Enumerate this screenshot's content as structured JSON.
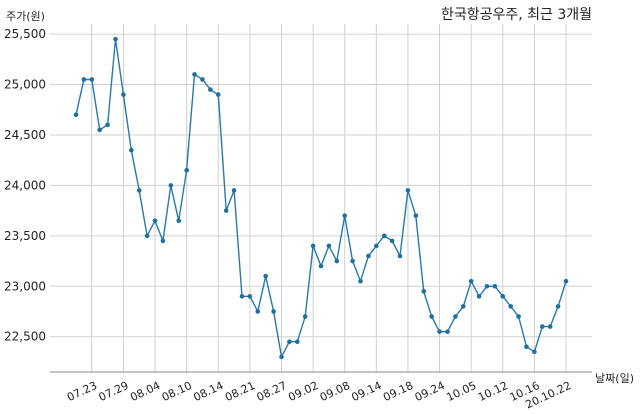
{
  "chart_data": {
    "type": "line",
    "title": "한국항공우주, 최근 3개월",
    "ylabel": "주가(원)",
    "xlabel": "날짜(일)",
    "ylim": [
      22150,
      25600
    ],
    "yticks": [
      22500,
      23000,
      23500,
      24000,
      24500,
      25000,
      25500
    ],
    "ytick_labels": [
      "22,500",
      "23,000",
      "23,500",
      "24,000",
      "24,500",
      "25,000",
      "25,500"
    ],
    "xtick_labels": [
      "07.23",
      "07.29",
      "08.04",
      "08.10",
      "08.14",
      "08.21",
      "08.27",
      "09.02",
      "09.08",
      "09.14",
      "09.18",
      "09.24",
      "10.05",
      "10.12",
      "10.16",
      "20.10.22"
    ],
    "xtick_index": [
      2,
      6,
      10,
      14,
      18,
      22,
      26,
      30,
      34,
      38,
      42,
      46,
      50,
      54,
      58,
      62
    ],
    "grid": true,
    "series": [
      {
        "color": "#2a78a8",
        "values": [
          24700,
          25050,
          25050,
          24550,
          24600,
          25450,
          24900,
          24350,
          23950,
          23500,
          23650,
          23450,
          24000,
          23650,
          24150,
          25100,
          25050,
          24950,
          24900,
          23750,
          23950,
          22900,
          22900,
          22750,
          23100,
          22750,
          22300,
          22450,
          22450,
          22700,
          23400,
          23200,
          23400,
          23250,
          23700,
          23250,
          23050,
          23300,
          23400,
          23500,
          23450,
          23300,
          23950,
          23700,
          22950,
          22700,
          22550,
          22550,
          22700,
          22800,
          23050,
          22900,
          23000,
          23000,
          22900,
          22800,
          22700,
          22400,
          22350,
          22600,
          22600,
          22800,
          23050
        ]
      }
    ]
  }
}
